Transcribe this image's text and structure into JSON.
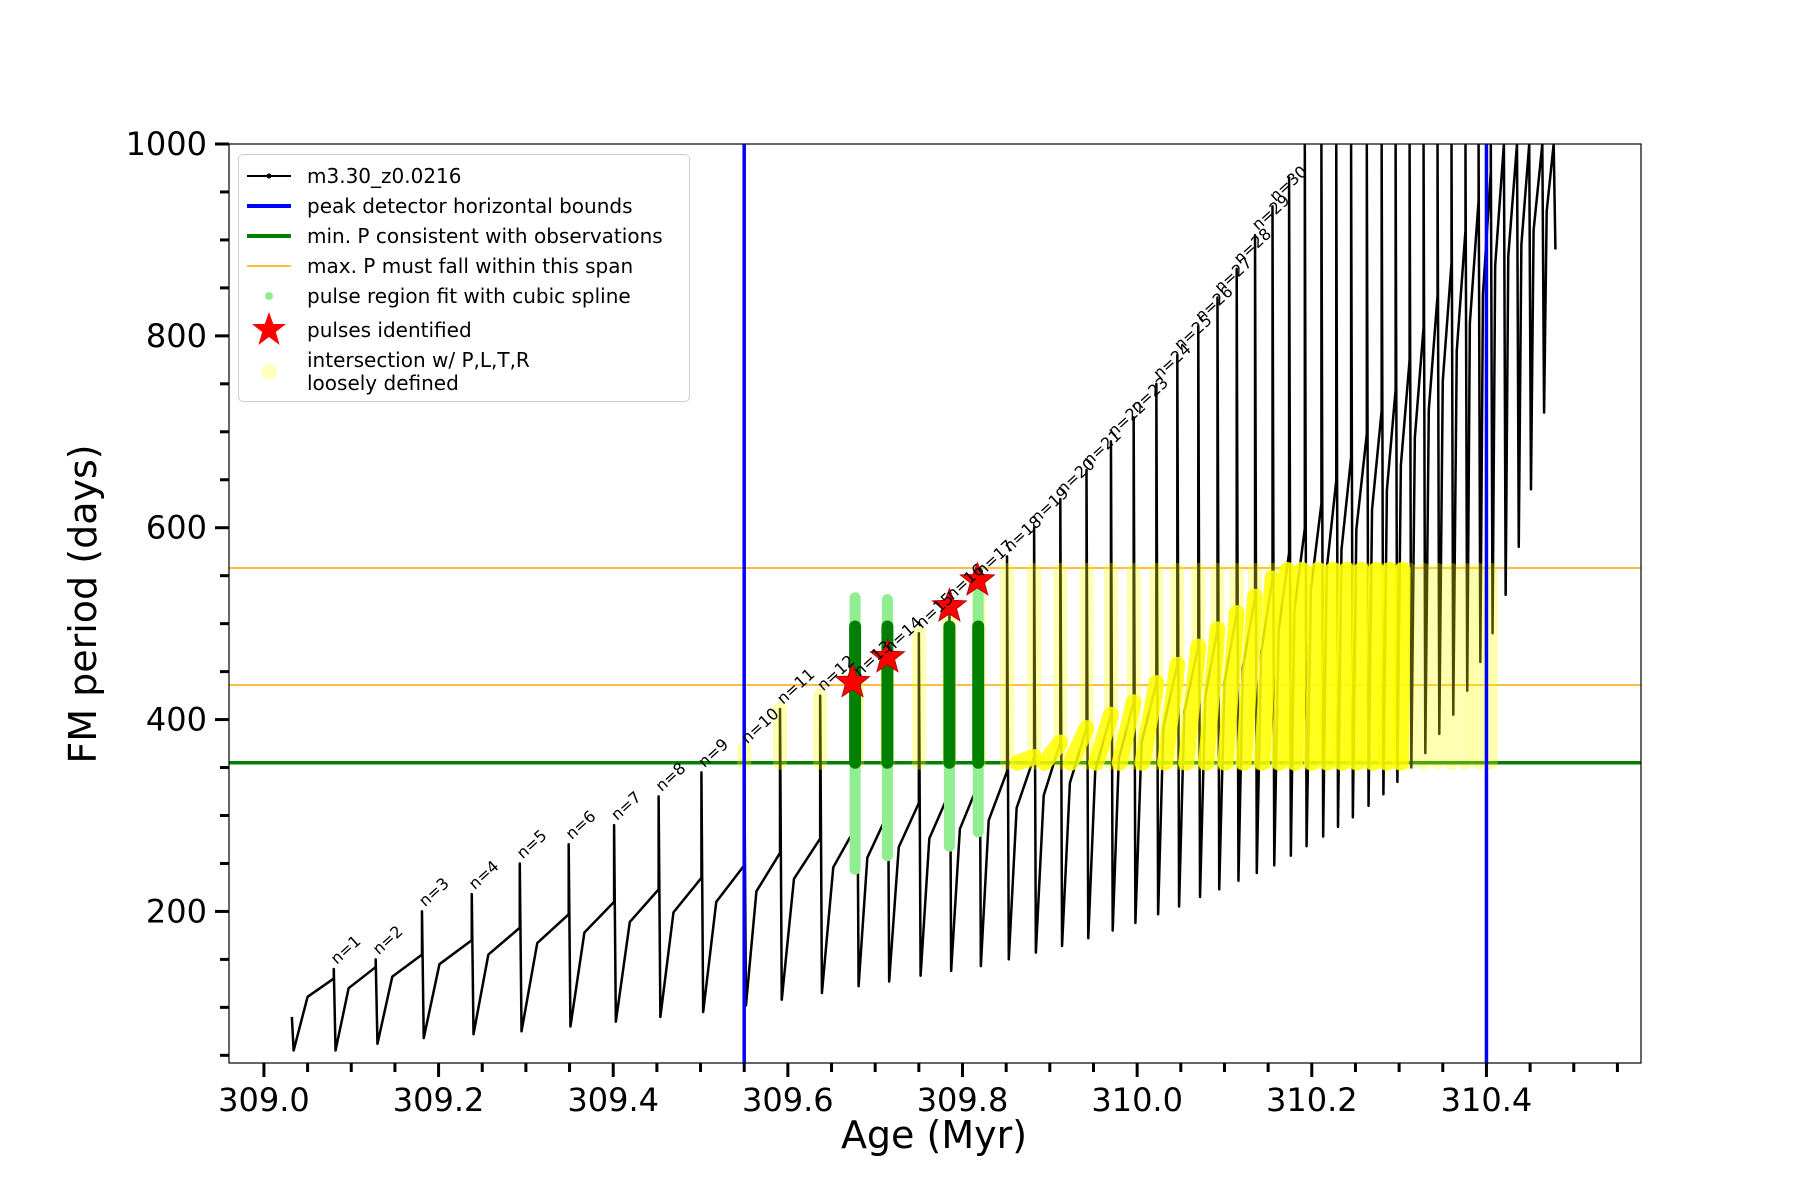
{
  "chart_data": {
    "type": "line",
    "xlabel": "Age (Myr)",
    "ylabel": "FM period (days)",
    "xlim": [
      308.96,
      310.577
    ],
    "ylim": [
      42,
      1000
    ],
    "xticks": [
      {
        "value": 309.0,
        "label": "309.0"
      },
      {
        "value": 309.2,
        "label": "309.2"
      },
      {
        "value": 309.4,
        "label": "309.4"
      },
      {
        "value": 309.6,
        "label": "309.6"
      },
      {
        "value": 309.8,
        "label": "309.8"
      },
      {
        "value": 310.0,
        "label": "310.0"
      },
      {
        "value": 310.2,
        "label": "310.2"
      },
      {
        "value": 310.4,
        "label": "310.4"
      }
    ],
    "xminorticks": [
      309.05,
      309.1,
      309.15,
      309.25,
      309.3,
      309.35,
      309.45,
      309.5,
      309.55,
      309.65,
      309.7,
      309.75,
      309.85,
      309.9,
      309.95,
      310.05,
      310.1,
      310.15,
      310.25,
      310.3,
      310.35,
      310.45,
      310.5,
      310.55
    ],
    "yticks": [
      200,
      400,
      600,
      800,
      1000
    ],
    "yminorticks": [
      50,
      100,
      150,
      250,
      300,
      350,
      450,
      500,
      550,
      650,
      700,
      750,
      850,
      900,
      950
    ],
    "legend": "upper left",
    "series": [
      {
        "name": "m3.30_z0.0216",
        "color": "#000000",
        "x": [
          309.032,
          309.034,
          309.05,
          309.08,
          309.08,
          309.082,
          309.097,
          309.128,
          309.128,
          309.13,
          309.147,
          309.181,
          309.181,
          309.183,
          309.201,
          309.238,
          309.238,
          309.24,
          309.257,
          309.293,
          309.293,
          309.295,
          309.313,
          309.349,
          309.349,
          309.351,
          309.367,
          309.401,
          309.401,
          309.403,
          309.419,
          309.452,
          309.452,
          309.454,
          309.469,
          309.501,
          309.501,
          309.503,
          309.518,
          309.55,
          309.55,
          309.552,
          309.564,
          309.591,
          309.591,
          309.593,
          309.607,
          309.637,
          309.637,
          309.639,
          309.652,
          309.679,
          309.679,
          309.681,
          309.691,
          309.714,
          309.714,
          309.716,
          309.727,
          309.75,
          309.75,
          309.752,
          309.762,
          309.785,
          309.785,
          309.787,
          309.797,
          309.819,
          309.819,
          309.821,
          309.83,
          309.851,
          309.851,
          309.853,
          309.862,
          309.882,
          309.882,
          309.884,
          309.893,
          309.912,
          309.912,
          309.914,
          309.923,
          309.942,
          309.942,
          309.944,
          309.952,
          309.97,
          309.97,
          309.972,
          309.979,
          309.996,
          309.996,
          309.998,
          310.005,
          310.022,
          310.022,
          310.024,
          310.03,
          310.046,
          310.046,
          310.048,
          310.054,
          310.07,
          310.07,
          310.072,
          310.078,
          310.092,
          310.092,
          310.094,
          310.1,
          310.114,
          310.114,
          310.116,
          310.121,
          310.135,
          310.135,
          310.137,
          310.142,
          310.155,
          310.155,
          310.157,
          310.162,
          310.174,
          310.174,
          310.176,
          310.18,
          310.192,
          310.192,
          310.194,
          310.199,
          310.211,
          310.211,
          310.213,
          310.217,
          310.228,
          310.228,
          310.23,
          310.234,
          310.245,
          310.245,
          310.247,
          310.251,
          310.263,
          310.263,
          310.265,
          310.269,
          310.28,
          310.28,
          310.282,
          310.286,
          310.296,
          310.296,
          310.298,
          310.302,
          310.312,
          310.312,
          310.314,
          310.318,
          310.328,
          310.328,
          310.33,
          310.334,
          310.344,
          310.344,
          310.346,
          310.35,
          310.36,
          310.36,
          310.362,
          310.366,
          310.376,
          310.376,
          310.378,
          310.381,
          310.391,
          310.391,
          310.393,
          310.396,
          310.405,
          310.405,
          310.407,
          310.41,
          310.42,
          310.42,
          310.422,
          310.425,
          310.435,
          310.435,
          310.437,
          310.44,
          310.449,
          310.449,
          310.451,
          310.454,
          310.464,
          310.464,
          310.466,
          310.469,
          310.477,
          310.477,
          310.479
        ],
        "values": [
          90,
          55,
          111,
          130,
          140,
          55,
          120,
          142,
          150,
          62,
          132,
          155,
          200,
          68,
          145,
          170,
          218,
          72,
          155,
          183,
          250,
          75,
          167,
          197,
          270,
          80,
          178,
          210,
          290,
          85,
          189,
          223,
          320,
          90,
          199,
          235,
          345,
          95,
          210,
          248,
          370,
          102,
          221,
          261,
          411,
          108,
          234,
          276,
          425,
          115,
          246,
          290,
          440,
          122,
          256,
          301,
          465,
          127,
          267,
          313,
          490,
          133,
          276,
          324,
          520,
          138,
          286,
          335,
          545,
          143,
          295,
          346,
          570,
          150,
          308,
          361,
          600,
          157,
          321,
          376,
          630,
          164,
          334,
          391,
          660,
          172,
          347,
          405,
          690,
          180,
          359,
          418,
          715,
          188,
          376,
          438,
          750,
          197,
          392,
          457,
          780,
          205,
          408,
          476,
          810,
          215,
          424,
          494,
          840,
          223,
          439,
          511,
          870,
          232,
          454,
          528,
          905,
          240,
          470,
          547,
          935,
          248,
          493,
          574,
          965,
          258,
          514,
          599,
          1000,
          268,
          536,
          625,
          1000,
          278,
          556,
          649,
          1000,
          288,
          577,
          673,
          1000,
          298,
          598,
          698,
          1000,
          310,
          619,
          722,
          1000,
          322,
          639,
          744,
          1000,
          335,
          665,
          775,
          1000,
          350,
          694,
          809,
          1000,
          365,
          723,
          842,
          1000,
          385,
          753,
          876,
          1000,
          405,
          784,
          910,
          1000,
          430,
          813,
          941,
          1000,
          460,
          843,
          971,
          1000,
          490,
          873,
          1000,
          1000,
          530,
          883,
          1000,
          1000,
          580,
          895,
          1000,
          1000,
          640,
          910,
          1000,
          1000,
          720,
          930,
          1000,
          1000,
          890
        ]
      }
    ],
    "vlines": {
      "name": "peak detector horizontal bounds",
      "color": "#0000ff",
      "values": [
        309.55,
        310.4
      ]
    },
    "hlines": [
      {
        "name": "min. P consistent with observations",
        "color": "#008000",
        "values": [
          355
        ]
      },
      {
        "name": "max. P must fall within this span",
        "color": "#ffa500",
        "values": [
          436,
          558
        ]
      }
    ],
    "pulse_fits": {
      "name": "pulse region fit with cubic spline",
      "color": "#90ee90",
      "dark_color": "#008000",
      "x": [
        309.677,
        309.714,
        309.785,
        309.818
      ],
      "low": [
        244,
        258,
        268,
        283
      ],
      "high": [
        527,
        525,
        497,
        530
      ],
      "dark_low": [
        355,
        355,
        355,
        355
      ],
      "dark_high": [
        497,
        497,
        497,
        497
      ]
    },
    "pulses": {
      "name": "pulses identified",
      "color": "#ff0000",
      "x": [
        309.674,
        309.714,
        309.785,
        309.817
      ],
      "values": [
        439,
        465,
        518,
        545
      ]
    },
    "intersections": {
      "name": "intersection w/ P,L,T,R\nloosely defined",
      "color": "#ffff00",
      "spans": [
        [
          309.55,
          355,
          370
        ],
        [
          309.591,
          355,
          411
        ],
        [
          309.637,
          355,
          425
        ],
        [
          309.679,
          355,
          440
        ],
        [
          309.714,
          355,
          465
        ],
        [
          309.75,
          355,
          490
        ],
        [
          309.785,
          355,
          520
        ],
        [
          309.819,
          355,
          545
        ],
        [
          309.851,
          355,
          556
        ],
        [
          309.882,
          355,
          556
        ],
        [
          309.912,
          355,
          556
        ],
        [
          309.942,
          355,
          556
        ],
        [
          309.97,
          355,
          556
        ],
        [
          309.996,
          355,
          556
        ],
        [
          310.022,
          355,
          556
        ],
        [
          310.046,
          355,
          556
        ],
        [
          310.07,
          355,
          556
        ],
        [
          310.092,
          355,
          556
        ],
        [
          310.114,
          355,
          556
        ],
        [
          310.135,
          355,
          556
        ],
        [
          310.155,
          355,
          556
        ],
        [
          310.174,
          355,
          556
        ],
        [
          310.192,
          355,
          556
        ],
        [
          310.211,
          355,
          556
        ],
        [
          310.228,
          355,
          556
        ],
        [
          310.245,
          355,
          556
        ],
        [
          310.263,
          355,
          556
        ],
        [
          310.28,
          355,
          556
        ],
        [
          310.296,
          355,
          556
        ],
        [
          310.312,
          355,
          556
        ],
        [
          310.328,
          355,
          556
        ],
        [
          310.344,
          355,
          556
        ],
        [
          310.36,
          355,
          556
        ],
        [
          310.376,
          355,
          556
        ],
        [
          310.391,
          355,
          556
        ],
        [
          310.405,
          355,
          556
        ]
      ],
      "ribbons": [
        [
          309.863,
          355,
          309.882,
          361
        ],
        [
          309.894,
          355,
          309.912,
          376
        ],
        [
          309.924,
          355,
          309.942,
          391
        ],
        [
          309.953,
          355,
          309.97,
          405
        ],
        [
          309.98,
          355,
          309.996,
          418
        ],
        [
          310.006,
          355,
          310.022,
          438
        ],
        [
          310.032,
          355,
          310.046,
          457
        ],
        [
          310.056,
          355,
          310.07,
          476
        ],
        [
          310.079,
          355,
          310.092,
          494
        ],
        [
          310.101,
          355,
          310.114,
          511
        ],
        [
          310.122,
          355,
          310.135,
          528
        ],
        [
          310.143,
          355,
          310.155,
          547
        ],
        [
          310.163,
          355,
          310.172,
          556
        ],
        [
          310.181,
          355,
          310.189,
          556
        ],
        [
          310.2,
          355,
          310.207,
          556
        ],
        [
          310.218,
          355,
          310.224,
          556
        ],
        [
          310.235,
          355,
          310.24,
          556
        ],
        [
          310.252,
          355,
          310.257,
          556
        ],
        [
          310.27,
          355,
          310.274,
          556
        ],
        [
          310.286,
          355,
          310.289,
          556
        ],
        [
          310.302,
          355,
          310.304,
          556
        ]
      ]
    },
    "pulse_labels": [
      "n=1",
      "n=2",
      "n=3",
      "n=4",
      "n=5",
      "n=6",
      "n=7",
      "n=8",
      "n=9",
      "n=10",
      "n=11",
      "n=12",
      "n=13",
      "n=14",
      "n=15",
      "n=16",
      "n=17",
      "n=18",
      "n=19",
      "n=20",
      "n=21",
      "n=22",
      "n=23",
      "n=24",
      "n=25",
      "n=26",
      "n=27",
      "n=28",
      "n=29",
      "n=30"
    ]
  }
}
